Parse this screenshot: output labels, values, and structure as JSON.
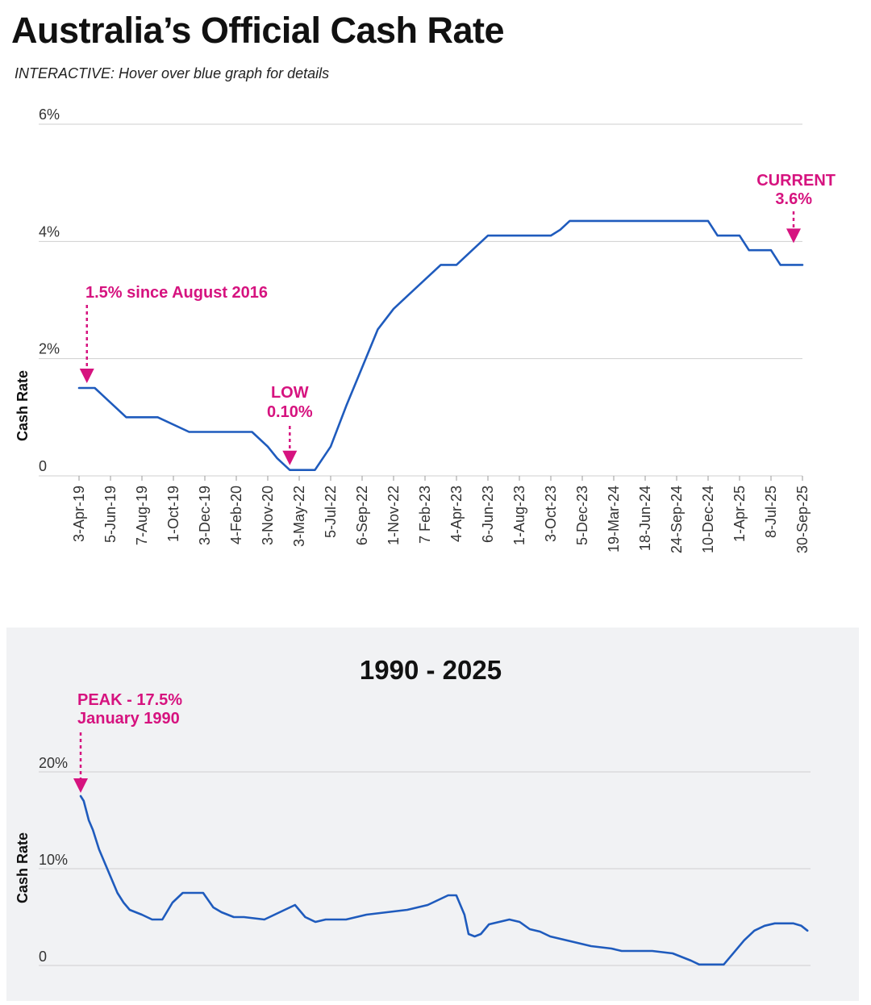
{
  "page": {
    "title": "Australia’s Official Cash Rate",
    "subtitle": "INTERACTIVE: Hover over blue graph for details"
  },
  "colors": {
    "series": "#1f5bbd",
    "annotation": "#d6137f",
    "panel_background": "#f1f2f4",
    "grid": "#cfcfcf"
  },
  "chart_data": [
    {
      "type": "line",
      "title": "",
      "ylabel": "Cash Rate",
      "xlabel": "",
      "ylim": [
        0,
        6
      ],
      "yticks": [
        0,
        2,
        4,
        6
      ],
      "ytick_labels": [
        "0",
        "2%",
        "4%",
        "6%"
      ],
      "grid": true,
      "categories": [
        "3-Apr-19",
        "5-Jun-19",
        "7-Aug-19",
        "1-Oct-19",
        "3-Dec-19",
        "4-Feb-20",
        "3-Nov-20",
        "3-May-22",
        "5-Jul-22",
        "6-Sep-22",
        "1-Nov-22",
        "7 Feb-23",
        "4-Apr-23",
        "6-Jun-23",
        "1-Aug-23",
        "3-Oct-23",
        "5-Dec-23",
        "19-Mar-24",
        "18-Jun-24",
        "24-Sep-24",
        "10-Dec-24",
        "1-Apr-25",
        "8-Jul-25",
        "30-Sep-25"
      ],
      "series": [
        {
          "x": [
            0,
            0.5,
            1.5,
            2,
            2.5,
            3.5,
            4,
            4.5,
            5.5,
            6,
            6.3,
            6.7,
            7,
            7.5,
            8,
            8.5,
            9,
            9.5,
            10,
            10.5,
            11,
            11.5,
            12,
            12.5,
            13,
            13.5,
            14,
            15,
            15.3,
            15.6,
            16,
            17,
            18,
            19,
            19.5,
            20,
            20.3,
            20.6,
            21,
            21.3,
            21.6,
            22,
            22.3,
            22.6,
            23
          ],
          "y": [
            1.5,
            1.5,
            1.0,
            1.0,
            1.0,
            0.75,
            0.75,
            0.75,
            0.75,
            0.5,
            0.3,
            0.1,
            0.1,
            0.1,
            0.5,
            1.2,
            1.85,
            2.5,
            2.85,
            3.1,
            3.35,
            3.6,
            3.6,
            3.85,
            4.1,
            4.1,
            4.1,
            4.1,
            4.2,
            4.35,
            4.35,
            4.35,
            4.35,
            4.35,
            4.35,
            4.35,
            4.1,
            4.1,
            4.1,
            3.85,
            3.85,
            3.85,
            3.6,
            3.6,
            3.6
          ]
        }
      ],
      "annotations": [
        {
          "text": "1.5% since August 2016",
          "x": 0.25,
          "y": 1.5
        },
        {
          "text": "LOW",
          "text2": "0.10%",
          "x": 6.7,
          "y": 0.1
        },
        {
          "text": "CURRENT",
          "text2": "3.6%",
          "x": 23.0,
          "y": 3.6
        }
      ]
    },
    {
      "type": "line",
      "title": "1990 - 2025",
      "ylabel": "Cash Rate",
      "xlabel": "",
      "xlim": [
        1990,
        2025.75
      ],
      "ylim": [
        0,
        20
      ],
      "yticks": [
        0,
        10,
        20
      ],
      "ytick_labels": [
        "0",
        "10%",
        "20%"
      ],
      "grid": true,
      "series": [
        {
          "x": [
            1990.0,
            1990.15,
            1990.4,
            1990.6,
            1990.9,
            1991.2,
            1991.5,
            1991.8,
            1992.1,
            1992.4,
            1992.7,
            1993.0,
            1993.5,
            1994.0,
            1994.5,
            1995.0,
            1996.0,
            1996.5,
            1996.9,
            1997.5,
            1998.0,
            1999.0,
            2000.0,
            2000.5,
            2001.0,
            2001.5,
            2002.0,
            2003.0,
            2004.0,
            2005.0,
            2006.0,
            2007.0,
            2008.0,
            2008.4,
            2008.8,
            2009.0,
            2009.3,
            2009.6,
            2010.0,
            2011.0,
            2011.5,
            2012.0,
            2012.5,
            2013.0,
            2013.5,
            2014.0,
            2015.0,
            2016.0,
            2016.5,
            2017.0,
            2018.0,
            2019.0,
            2019.3,
            2019.6,
            2019.9,
            2020.3,
            2020.7,
            2021.5,
            2022.0,
            2022.5,
            2023.0,
            2023.5,
            2024.0,
            2024.9,
            2025.3,
            2025.6
          ],
          "y": [
            17.5,
            17.0,
            15.0,
            14.0,
            12.0,
            10.5,
            9.0,
            7.5,
            6.5,
            5.75,
            5.5,
            5.25,
            4.75,
            4.75,
            6.5,
            7.5,
            7.5,
            6.0,
            5.5,
            5.0,
            5.0,
            4.75,
            5.75,
            6.25,
            5.0,
            4.5,
            4.75,
            4.75,
            5.25,
            5.5,
            5.75,
            6.25,
            7.25,
            7.25,
            5.25,
            3.25,
            3.0,
            3.25,
            4.25,
            4.75,
            4.5,
            3.75,
            3.5,
            3.0,
            2.75,
            2.5,
            2.0,
            1.75,
            1.5,
            1.5,
            1.5,
            1.25,
            1.0,
            0.75,
            0.5,
            0.1,
            0.1,
            0.1,
            1.35,
            2.6,
            3.6,
            4.1,
            4.35,
            4.35,
            4.1,
            3.6
          ]
        }
      ],
      "annotations": [
        {
          "text": "PEAK - 17.5%",
          "text2": "January 1990",
          "x": 1990.0,
          "y": 17.5
        }
      ]
    }
  ]
}
